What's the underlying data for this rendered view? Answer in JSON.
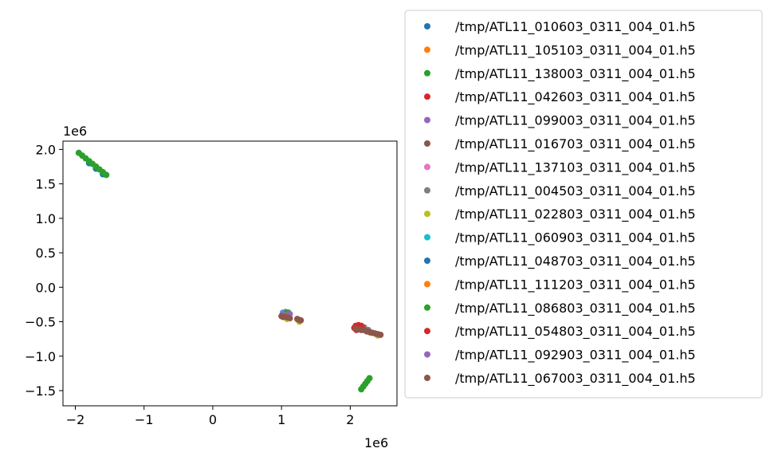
{
  "chart_data": {
    "type": "scatter",
    "title": "",
    "xlabel": "",
    "ylabel": "",
    "x_offset_label": "1e6",
    "y_offset_label": "1e6",
    "xlim": [
      -2.18,
      2.68
    ],
    "ylim": [
      -1.72,
      2.12
    ],
    "x_ticks": [
      -2,
      -1,
      0,
      1,
      2
    ],
    "x_tick_labels": [
      "−2",
      "−1",
      "0",
      "1",
      "2"
    ],
    "y_ticks": [
      -1.5,
      -1.0,
      -0.5,
      0.0,
      0.5,
      1.0,
      1.5,
      2.0
    ],
    "y_tick_labels": [
      "−1.5",
      "−1.0",
      "−0.5",
      "0.0",
      "0.5",
      "1.0",
      "1.5",
      "2.0"
    ],
    "grid": false,
    "legend_position": "outside-right",
    "series": [
      {
        "name": "/tmp/ATL11_010603_0311_004_01.h5",
        "color": "#1f77b4",
        "points": [
          [
            -1.8,
            1.8
          ],
          [
            -1.7,
            1.72
          ],
          [
            -1.6,
            1.64
          ]
        ]
      },
      {
        "name": "/tmp/ATL11_105103_0311_004_01.h5",
        "color": "#ff7f0e",
        "points": [
          [
            1.05,
            -0.41
          ],
          [
            2.1,
            -0.6
          ]
        ]
      },
      {
        "name": "/tmp/ATL11_138003_0311_004_01.h5",
        "color": "#2ca02c",
        "points": [
          [
            -1.95,
            1.95
          ],
          [
            -1.9,
            1.91
          ],
          [
            -1.85,
            1.87
          ],
          [
            -1.8,
            1.83
          ],
          [
            -1.75,
            1.79
          ],
          [
            -1.7,
            1.75
          ],
          [
            -1.65,
            1.71
          ],
          [
            -1.6,
            1.67
          ],
          [
            -1.55,
            1.63
          ]
        ]
      },
      {
        "name": "/tmp/ATL11_042603_0311_004_01.h5",
        "color": "#d62728",
        "points": [
          [
            2.08,
            -0.56
          ],
          [
            2.12,
            -0.55
          ],
          [
            2.16,
            -0.56
          ]
        ]
      },
      {
        "name": "/tmp/ATL11_099003_0311_004_01.h5",
        "color": "#9467bd",
        "points": [
          [
            1.02,
            -0.37
          ],
          [
            1.06,
            -0.36
          ],
          [
            1.1,
            -0.37
          ]
        ]
      },
      {
        "name": "/tmp/ATL11_016703_0311_004_01.h5",
        "color": "#8c564b",
        "points": [
          [
            1.02,
            -0.43
          ],
          [
            1.07,
            -0.44
          ],
          [
            1.12,
            -0.45
          ],
          [
            1.24,
            -0.47
          ],
          [
            1.28,
            -0.48
          ]
        ]
      },
      {
        "name": "/tmp/ATL11_137103_0311_004_01.h5",
        "color": "#e377c2",
        "points": [
          [
            1.04,
            -0.4
          ]
        ]
      },
      {
        "name": "/tmp/ATL11_004503_0311_004_01.h5",
        "color": "#7f7f7f",
        "points": [
          [
            2.2,
            -0.58
          ],
          [
            2.26,
            -0.62
          ]
        ]
      },
      {
        "name": "/tmp/ATL11_022803_0311_004_01.h5",
        "color": "#bcbd22",
        "points": [
          [
            1.08,
            -0.46
          ],
          [
            1.26,
            -0.5
          ],
          [
            2.4,
            -0.7
          ]
        ]
      },
      {
        "name": "/tmp/ATL11_060903_0311_004_01.h5",
        "color": "#17becf",
        "points": [
          [
            1.03,
            -0.38
          ],
          [
            1.08,
            -0.38
          ]
        ]
      },
      {
        "name": "/tmp/ATL11_048703_0311_004_01.h5",
        "color": "#1f77b4",
        "points": [
          [
            1.05,
            -0.39
          ]
        ]
      },
      {
        "name": "/tmp/ATL11_111203_0311_004_01.h5",
        "color": "#ff7f0e",
        "points": [
          [
            2.3,
            -0.66
          ]
        ]
      },
      {
        "name": "/tmp/ATL11_086803_0311_004_01.h5",
        "color": "#2ca02c",
        "points": [
          [
            2.16,
            -1.48
          ],
          [
            2.19,
            -1.44
          ],
          [
            2.22,
            -1.4
          ],
          [
            2.25,
            -1.36
          ],
          [
            2.28,
            -1.32
          ],
          [
            1.06,
            -0.38
          ],
          [
            1.1,
            -0.37
          ]
        ]
      },
      {
        "name": "/tmp/ATL11_054803_0311_004_01.h5",
        "color": "#d62728",
        "points": [
          [
            2.06,
            -0.59
          ],
          [
            2.09,
            -0.58
          ],
          [
            2.13,
            -0.57
          ],
          [
            2.17,
            -0.58
          ],
          [
            2.09,
            -0.62
          ]
        ]
      },
      {
        "name": "/tmp/ATL11_092903_0311_004_01.h5",
        "color": "#9467bd",
        "points": [
          [
            1.04,
            -0.4
          ],
          [
            1.08,
            -0.41
          ],
          [
            1.12,
            -0.39
          ]
        ]
      },
      {
        "name": "/tmp/ATL11_067003_0311_004_01.h5",
        "color": "#8c564b",
        "points": [
          [
            1.0,
            -0.42
          ],
          [
            1.05,
            -0.43
          ],
          [
            1.1,
            -0.44
          ],
          [
            1.23,
            -0.46
          ],
          [
            1.27,
            -0.48
          ],
          [
            2.08,
            -0.6
          ],
          [
            2.12,
            -0.61
          ],
          [
            2.16,
            -0.62
          ],
          [
            2.2,
            -0.62
          ],
          [
            2.24,
            -0.64
          ],
          [
            2.28,
            -0.65
          ],
          [
            2.32,
            -0.66
          ],
          [
            2.36,
            -0.67
          ],
          [
            2.4,
            -0.68
          ],
          [
            2.44,
            -0.69
          ]
        ]
      }
    ]
  }
}
